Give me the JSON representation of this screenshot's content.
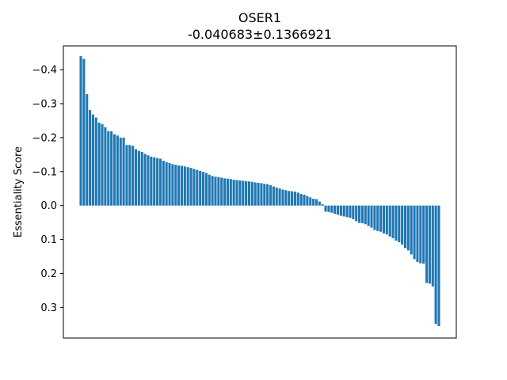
{
  "chart_data": {
    "type": "bar",
    "title": "OSER1",
    "subtitle": "-0.040683±0.1366921",
    "xlabel": "",
    "ylabel": "Essentiality Score",
    "yaxis_inverted": true,
    "ylim": [
      0.39,
      -0.47
    ],
    "yticks": [
      -0.4,
      -0.3,
      -0.2,
      -0.1,
      0.0,
      0.1,
      0.2,
      0.3
    ],
    "ytick_labels": [
      "−0.4",
      "−0.3",
      "−0.2",
      "−0.1",
      "0.0",
      "0.1",
      "0.2",
      "0.3"
    ],
    "grid": false,
    "bar_color": "#1f77b4",
    "values": [
      -0.44,
      -0.432,
      -0.328,
      -0.281,
      -0.268,
      -0.259,
      -0.244,
      -0.24,
      -0.231,
      -0.219,
      -0.219,
      -0.21,
      -0.206,
      -0.2,
      -0.2,
      -0.178,
      -0.178,
      -0.176,
      -0.166,
      -0.161,
      -0.158,
      -0.152,
      -0.148,
      -0.144,
      -0.142,
      -0.14,
      -0.138,
      -0.132,
      -0.128,
      -0.125,
      -0.122,
      -0.12,
      -0.118,
      -0.117,
      -0.115,
      -0.113,
      -0.111,
      -0.108,
      -0.105,
      -0.102,
      -0.099,
      -0.096,
      -0.091,
      -0.087,
      -0.085,
      -0.084,
      -0.082,
      -0.08,
      -0.079,
      -0.078,
      -0.076,
      -0.075,
      -0.074,
      -0.073,
      -0.072,
      -0.071,
      -0.07,
      -0.068,
      -0.067,
      -0.066,
      -0.064,
      -0.063,
      -0.06,
      -0.056,
      -0.053,
      -0.05,
      -0.047,
      -0.045,
      -0.043,
      -0.042,
      -0.041,
      -0.038,
      -0.034,
      -0.032,
      -0.028,
      -0.024,
      -0.02,
      -0.019,
      -0.012,
      -0.004,
      0.018,
      0.019,
      0.021,
      0.024,
      0.027,
      0.03,
      0.032,
      0.034,
      0.036,
      0.04,
      0.046,
      0.051,
      0.052,
      0.055,
      0.06,
      0.065,
      0.072,
      0.075,
      0.077,
      0.082,
      0.085,
      0.091,
      0.096,
      0.103,
      0.108,
      0.115,
      0.125,
      0.132,
      0.144,
      0.158,
      0.166,
      0.17,
      0.171,
      0.228,
      0.23,
      0.238,
      0.349,
      0.355
    ]
  }
}
